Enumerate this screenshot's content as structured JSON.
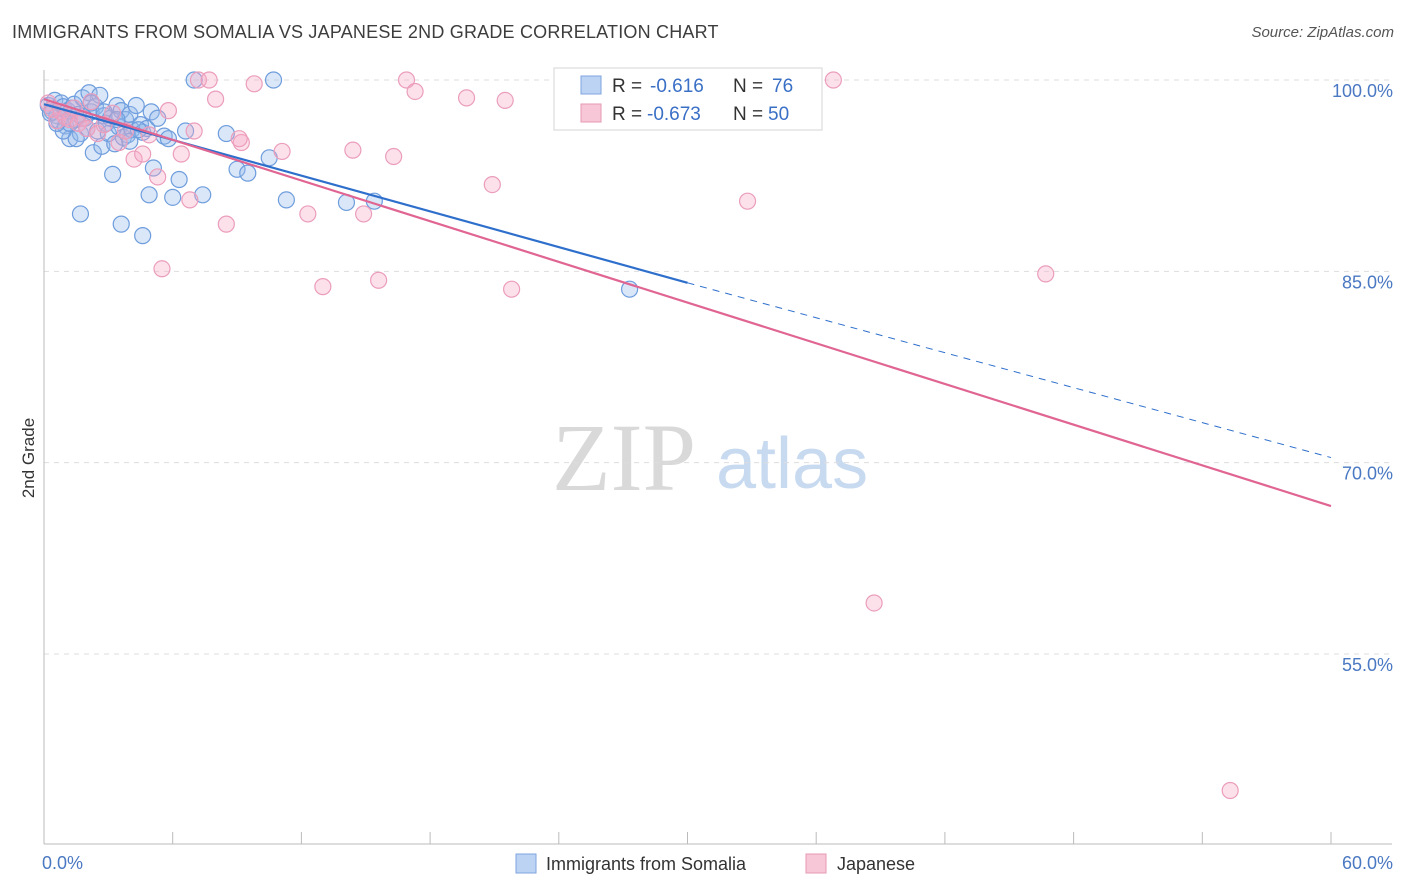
{
  "title": "IMMIGRANTS FROM SOMALIA VS JAPANESE 2ND GRADE CORRELATION CHART",
  "source": "Source: ZipAtlas.com",
  "watermark": {
    "zip": "ZIP",
    "atlas": "atlas"
  },
  "colors": {
    "somalia": "#5b8fd6",
    "japanese": "#e882a8",
    "somalia_line": "#2e6fcc",
    "japanese_line": "#e06592",
    "axis_label": "#4a78c2",
    "grid": "#dddddd"
  },
  "chart_data": {
    "type": "scatter",
    "xlabel": "",
    "ylabel": "2nd Grade",
    "xlim": [
      0,
      60
    ],
    "ylim": [
      38,
      102
    ],
    "x_ticks": [
      "0.0%",
      "60.0%"
    ],
    "y_ticks": [
      {
        "value": 55,
        "label": "55.0%"
      },
      {
        "value": 70,
        "label": "70.0%"
      },
      {
        "value": 85,
        "label": "85.0%"
      },
      {
        "value": 100,
        "label": "100.0%"
      }
    ],
    "grid": true,
    "legend_position": "top-center",
    "legend": [
      {
        "name": "Immigrants from Somalia",
        "r_label": "R =",
        "r": "-0.616",
        "n_label": "N =",
        "n": "76"
      },
      {
        "name": "Japanese",
        "r_label": "R =",
        "r": "-0.673",
        "n_label": "N =",
        "n": "50"
      }
    ],
    "series": [
      {
        "name": "Immigrants from Somalia",
        "trend": {
          "x_start": 0,
          "y_start": 98.1,
          "x_solid_end": 30,
          "y_solid_end": 84.1,
          "x_end": 60,
          "y_end": 70.4
        },
        "points": [
          [
            0.2,
            98.0
          ],
          [
            0.4,
            97.5
          ],
          [
            0.5,
            98.4
          ],
          [
            0.6,
            97.2
          ],
          [
            0.7,
            96.8
          ],
          [
            0.8,
            98.2
          ],
          [
            0.9,
            97.9
          ],
          [
            1.0,
            96.4
          ],
          [
            1.1,
            97.6
          ],
          [
            1.2,
            95.4
          ],
          [
            1.3,
            97.8
          ],
          [
            1.4,
            98.1
          ],
          [
            1.5,
            96.9
          ],
          [
            1.6,
            97.3
          ],
          [
            1.7,
            95.8
          ],
          [
            1.8,
            98.6
          ],
          [
            1.9,
            97.0
          ],
          [
            2.0,
            96.2
          ],
          [
            2.1,
            99.0
          ],
          [
            2.2,
            97.5
          ],
          [
            2.3,
            94.3
          ],
          [
            2.4,
            97.9
          ],
          [
            2.5,
            96.0
          ],
          [
            2.6,
            98.8
          ],
          [
            2.7,
            94.8
          ],
          [
            2.8,
            97.2
          ],
          [
            2.9,
            96.6
          ],
          [
            3.0,
            95.8
          ],
          [
            3.1,
            97.0
          ],
          [
            3.2,
            92.6
          ],
          [
            3.3,
            95.0
          ],
          [
            3.4,
            98.0
          ],
          [
            3.5,
            96.3
          ],
          [
            3.6,
            97.6
          ],
          [
            3.7,
            95.5
          ],
          [
            3.8,
            96.9
          ],
          [
            3.9,
            95.7
          ],
          [
            4.0,
            97.3
          ],
          [
            4.1,
            96.1
          ],
          [
            4.3,
            98.0
          ],
          [
            4.5,
            96.5
          ],
          [
            4.6,
            95.9
          ],
          [
            4.8,
            96.2
          ],
          [
            5.0,
            97.5
          ],
          [
            5.3,
            97.0
          ],
          [
            5.6,
            95.6
          ],
          [
            6.3,
            92.2
          ],
          [
            7.0,
            100.0
          ],
          [
            7.4,
            91.0
          ],
          [
            8.5,
            95.8
          ],
          [
            9.0,
            93.0
          ],
          [
            9.5,
            92.7
          ],
          [
            10.5,
            93.9
          ],
          [
            10.7,
            100.0
          ],
          [
            11.3,
            90.6
          ],
          [
            14.1,
            90.4
          ],
          [
            15.4,
            90.5
          ],
          [
            4.9,
            91.0
          ],
          [
            6.0,
            90.8
          ],
          [
            1.7,
            89.5
          ],
          [
            3.6,
            88.7
          ],
          [
            4.6,
            87.8
          ],
          [
            0.3,
            97.4
          ],
          [
            0.9,
            96.0
          ],
          [
            1.5,
            95.4
          ],
          [
            2.2,
            98.2
          ],
          [
            2.8,
            97.5
          ],
          [
            3.4,
            96.9
          ],
          [
            4.0,
            95.2
          ],
          [
            4.4,
            96.1
          ],
          [
            5.1,
            93.1
          ],
          [
            5.8,
            95.4
          ],
          [
            6.6,
            96.0
          ],
          [
            1.2,
            96.6
          ],
          [
            27.3,
            83.6
          ],
          [
            0.6,
            96.6
          ]
        ]
      },
      {
        "name": "Japanese",
        "trend": {
          "x_start": 0,
          "y_start": 98.5,
          "x_end": 60,
          "y_end": 66.6
        },
        "points": [
          [
            0.2,
            98.2
          ],
          [
            0.4,
            97.7
          ],
          [
            0.6,
            96.8
          ],
          [
            0.8,
            97.5
          ],
          [
            1.0,
            97.1
          ],
          [
            1.2,
            96.9
          ],
          [
            1.4,
            97.8
          ],
          [
            1.6,
            96.6
          ],
          [
            1.8,
            97.0
          ],
          [
            2.0,
            96.2
          ],
          [
            2.2,
            98.3
          ],
          [
            2.5,
            95.8
          ],
          [
            2.8,
            96.5
          ],
          [
            3.2,
            97.4
          ],
          [
            3.5,
            95.1
          ],
          [
            3.8,
            96.0
          ],
          [
            4.2,
            93.8
          ],
          [
            4.6,
            94.2
          ],
          [
            4.9,
            95.7
          ],
          [
            5.3,
            92.4
          ],
          [
            5.5,
            85.2
          ],
          [
            5.8,
            97.6
          ],
          [
            6.4,
            94.2
          ],
          [
            6.8,
            90.6
          ],
          [
            7.0,
            96.0
          ],
          [
            7.2,
            100.0
          ],
          [
            7.7,
            100.0
          ],
          [
            8.0,
            98.5
          ],
          [
            8.5,
            88.7
          ],
          [
            9.2,
            95.1
          ],
          [
            9.8,
            99.7
          ],
          [
            11.1,
            94.4
          ],
          [
            12.3,
            89.5
          ],
          [
            13.0,
            83.8
          ],
          [
            14.4,
            94.5
          ],
          [
            14.9,
            89.5
          ],
          [
            15.6,
            84.3
          ],
          [
            16.3,
            94.0
          ],
          [
            16.9,
            100.0
          ],
          [
            17.3,
            99.1
          ],
          [
            19.7,
            98.6
          ],
          [
            20.9,
            91.8
          ],
          [
            21.5,
            98.4
          ],
          [
            21.8,
            83.6
          ],
          [
            32.8,
            90.5
          ],
          [
            36.8,
            100.0
          ],
          [
            46.7,
            84.8
          ],
          [
            38.7,
            59.0
          ],
          [
            55.3,
            44.3
          ],
          [
            9.1,
            95.4
          ]
        ]
      }
    ]
  }
}
